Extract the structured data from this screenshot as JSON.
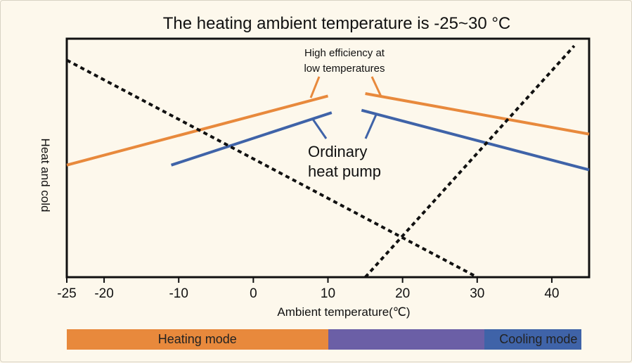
{
  "chart_data": {
    "type": "line",
    "title": "The heating ambient temperature is -25~30 °C",
    "xlabel": "Ambient temperature(℃)",
    "ylabel": "Heat and cold",
    "xlim": [
      -25,
      45
    ],
    "ylim": [
      0,
      100
    ],
    "xticks": [
      -25,
      -20,
      -10,
      0,
      10,
      20,
      30,
      40
    ],
    "xtick_labels": [
      "-25",
      "-20",
      "-10",
      "0",
      "10",
      "20",
      "30",
      "40"
    ],
    "grid": false,
    "series": [
      {
        "role": "high-efficiency-heating",
        "color": "#e8893c",
        "style": "solid",
        "x": [
          -25,
          10
        ],
        "y": [
          47,
          76
        ]
      },
      {
        "role": "high-efficiency-cooling",
        "color": "#e8893c",
        "style": "solid",
        "x": [
          15,
          45
        ],
        "y": [
          77,
          60
        ]
      },
      {
        "role": "ordinary-heating",
        "color": "#3f63a8",
        "style": "solid",
        "x": [
          -11,
          10.5
        ],
        "y": [
          47,
          69
        ]
      },
      {
        "role": "ordinary-cooling",
        "color": "#3f63a8",
        "style": "solid",
        "x": [
          14.5,
          45
        ],
        "y": [
          70,
          45
        ]
      },
      {
        "role": "heat-load",
        "color": "#111111",
        "style": "dashed",
        "x": [
          -25,
          30
        ],
        "y": [
          91,
          0
        ]
      },
      {
        "role": "cooling-load",
        "color": "#111111",
        "style": "dashed",
        "x": [
          15,
          43
        ],
        "y": [
          0,
          97
        ]
      }
    ],
    "annotations": [
      {
        "text": "High efficiency at low temperatures",
        "lines": [
          "High efficiency at",
          "low temperatures"
        ]
      },
      {
        "text": "Ordinary heat pump",
        "lines": [
          "Ordinary",
          "heat pump"
        ]
      }
    ],
    "modes": [
      {
        "label": "Heating mode",
        "from": -25,
        "to": 10,
        "color": "#e8893c"
      },
      {
        "label": "",
        "from": 10,
        "to": 31,
        "color": "#6b5fa6"
      },
      {
        "label": "Cooling mode",
        "from": 31,
        "to": 44,
        "color": "#3f63a8"
      }
    ]
  }
}
